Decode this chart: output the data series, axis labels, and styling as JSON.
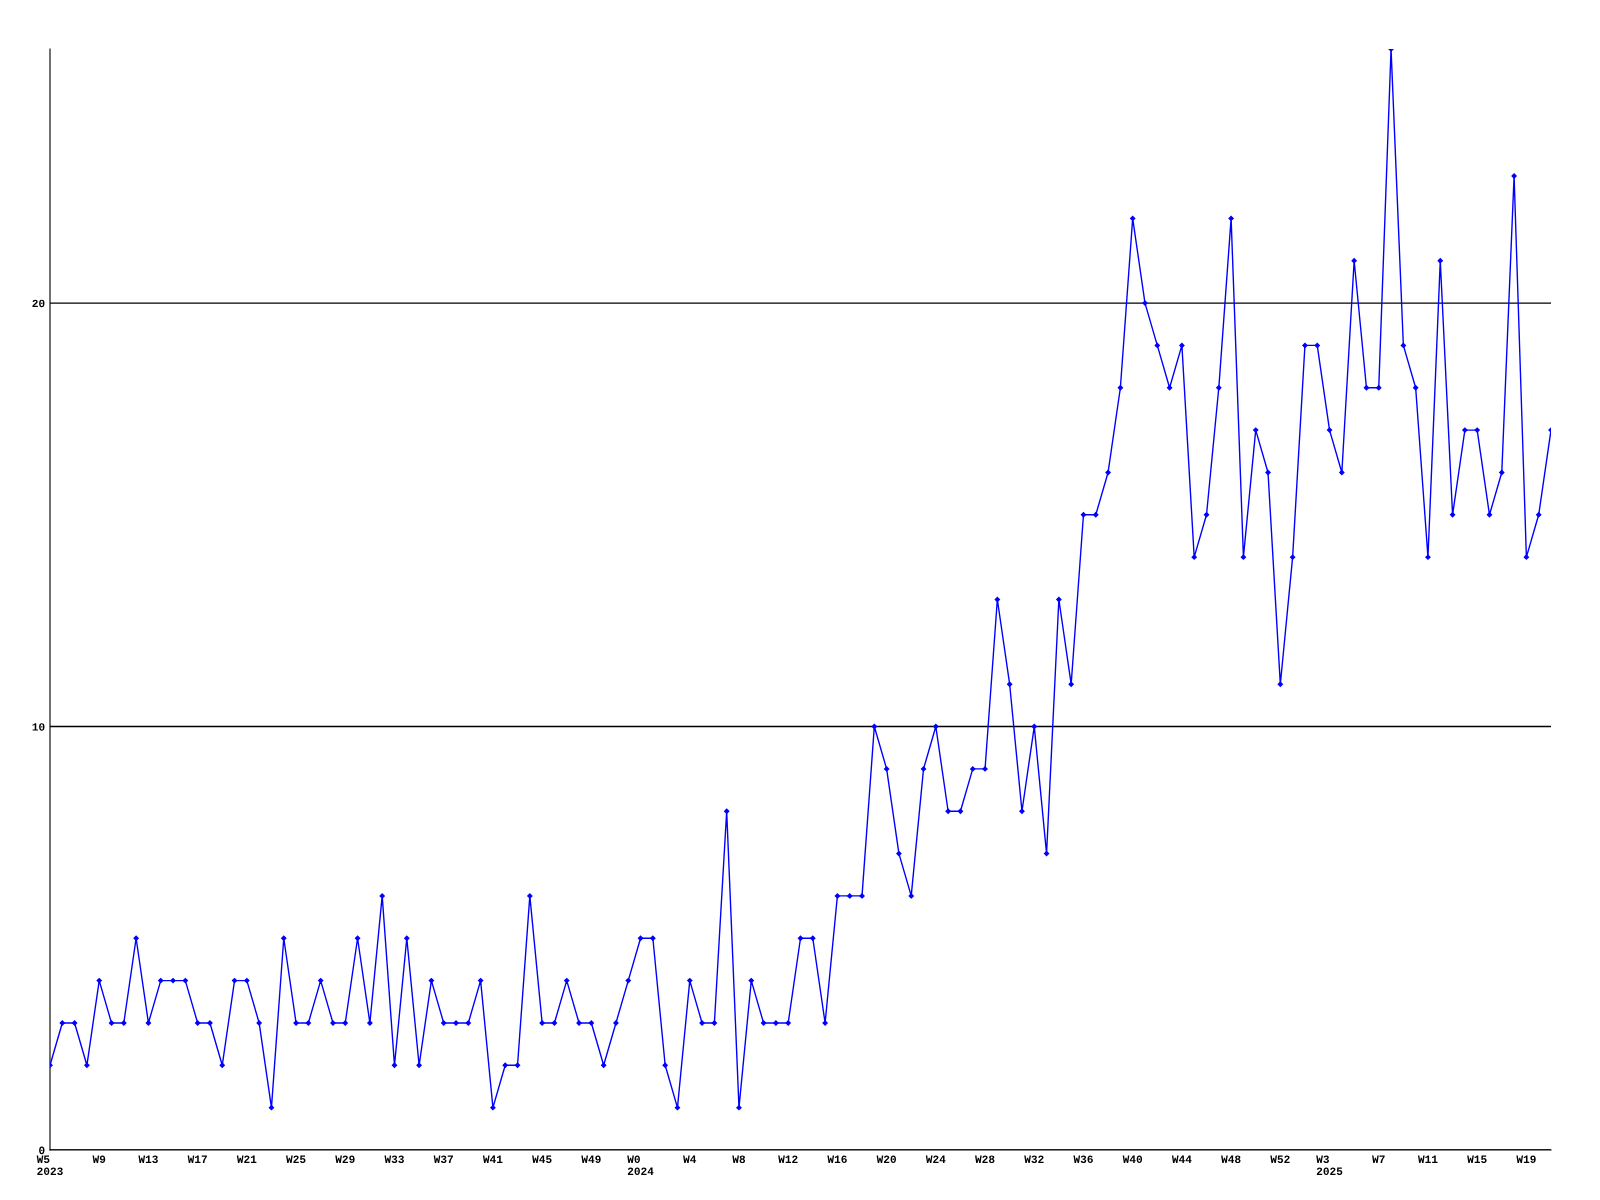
{
  "chart_data": {
    "type": "line",
    "categories": [
      "W5\n2023",
      null,
      null,
      null,
      "W9",
      null,
      null,
      null,
      "W13",
      null,
      null,
      null,
      "W17",
      null,
      null,
      null,
      "W21",
      null,
      null,
      null,
      "W25",
      null,
      null,
      null,
      "W29",
      null,
      null,
      null,
      "W33",
      null,
      null,
      null,
      "W37",
      null,
      null,
      null,
      "W41",
      null,
      null,
      null,
      "W45",
      null,
      null,
      null,
      "W49",
      null,
      null,
      null,
      "W0\n2024",
      null,
      null,
      null,
      "W4",
      null,
      null,
      null,
      "W8",
      null,
      null,
      null,
      "W12",
      null,
      null,
      null,
      "W16",
      null,
      null,
      null,
      "W20",
      null,
      null,
      null,
      "W24",
      null,
      null,
      null,
      "W28",
      null,
      null,
      null,
      "W32",
      null,
      null,
      null,
      "W36",
      null,
      null,
      null,
      "W40",
      null,
      null,
      null,
      "W44",
      null,
      null,
      null,
      "W48",
      null,
      null,
      null,
      "W52",
      null,
      null,
      null,
      "W3\n2025",
      null,
      null,
      null,
      "W7",
      null,
      null,
      null,
      "W11",
      null,
      null,
      null,
      "W15",
      null,
      null,
      null,
      "W19",
      null,
      null
    ],
    "series": [
      {
        "color": "#0000ff",
        "values": [
          2,
          3,
          3,
          2,
          4,
          3,
          3,
          5,
          3,
          4,
          4,
          4,
          3,
          3,
          2,
          4,
          4,
          3,
          1,
          5,
          3,
          3,
          4,
          3,
          3,
          5,
          3,
          6,
          2,
          5,
          2,
          4,
          3,
          3,
          3,
          4,
          1,
          2,
          2,
          6,
          3,
          3,
          4,
          3,
          3,
          2,
          3,
          4,
          5,
          5,
          2,
          1,
          4,
          3,
          3,
          8,
          1,
          4,
          3,
          3,
          3,
          5,
          5,
          3,
          6,
          6,
          6,
          10,
          9,
          7,
          6,
          9,
          10,
          8,
          8,
          9,
          9,
          13,
          11,
          8,
          10,
          7,
          13,
          11,
          15,
          15,
          16,
          18,
          22,
          20,
          19,
          18,
          19,
          14,
          15,
          18,
          22,
          14,
          17,
          16,
          11,
          14,
          19,
          19,
          17,
          16,
          21,
          18,
          18,
          26,
          19,
          18,
          14,
          21,
          15,
          17,
          17,
          15,
          16,
          23,
          14,
          15,
          17
        ]
      }
    ],
    "ylim": [
      0,
      26
    ],
    "yticks": [
      0,
      10,
      20
    ],
    "grid": "y",
    "marker": "diamond",
    "line_style": "solid"
  }
}
